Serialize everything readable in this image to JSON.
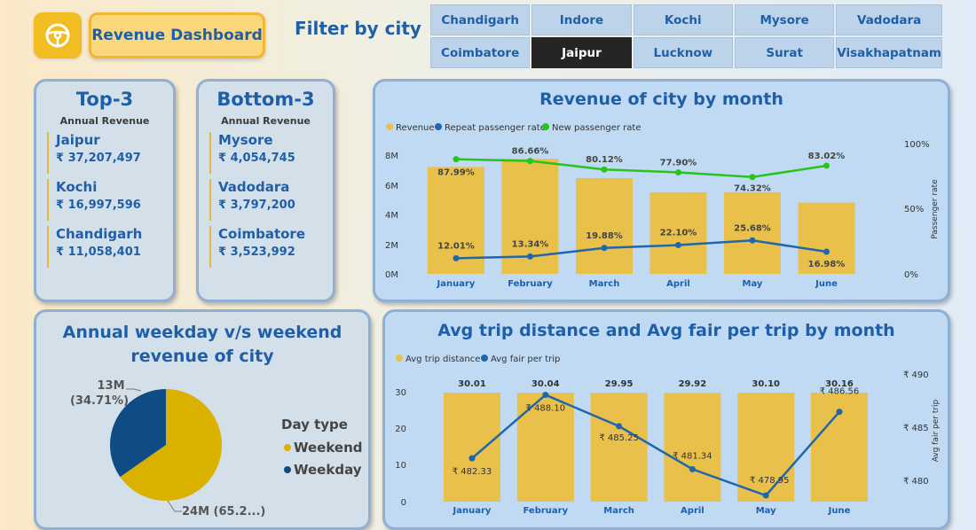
{
  "header": {
    "logo_icon": "steering-wheel-icon",
    "title_button": "Revenue Dashboard",
    "filter_label": "Filter by city"
  },
  "cities": [
    {
      "label": "Chandigarh",
      "selected": false
    },
    {
      "label": "Indore",
      "selected": false
    },
    {
      "label": "Kochi",
      "selected": false
    },
    {
      "label": "Mysore",
      "selected": false
    },
    {
      "label": "Vadodara",
      "selected": false
    },
    {
      "label": "Coimbatore",
      "selected": false
    },
    {
      "label": "Jaipur",
      "selected": true
    },
    {
      "label": "Lucknow",
      "selected": false
    },
    {
      "label": "Surat",
      "selected": false
    },
    {
      "label": "Visakhapatnam",
      "selected": false
    }
  ],
  "top3": {
    "title": "Top-3",
    "subtitle": "Annual Revenue",
    "items": [
      {
        "city": "Jaipur",
        "value": "₹ 37,207,497"
      },
      {
        "city": "Kochi",
        "value": "₹ 16,997,596"
      },
      {
        "city": "Chandigarh",
        "value": "₹ 11,058,401"
      }
    ]
  },
  "bottom3": {
    "title": "Bottom-3",
    "subtitle": "Annual Revenue",
    "items": [
      {
        "city": "Mysore",
        "value": "₹ 4,054,745"
      },
      {
        "city": "Vadodara",
        "value": "₹ 3,797,200"
      },
      {
        "city": "Coimbatore",
        "value": "₹ 3,523,992"
      }
    ]
  },
  "colors": {
    "bar": "#e9c04a",
    "line_blue": "#1f66ad",
    "line_green": "#27c41c",
    "pie_weekend": "#dbb100",
    "pie_weekday": "#0f4c86"
  },
  "revenue_chart": {
    "title": "Revenue of city by month",
    "legend": [
      "Revenue",
      "Repeat passenger rate",
      "New passenger rate"
    ],
    "y_ticks": [
      "0M",
      "2M",
      "4M",
      "6M",
      "8M"
    ],
    "y2_ticks": [
      "0%",
      "50%",
      "100%"
    ],
    "y2_label": "Passenger rate"
  },
  "weekday_chart": {
    "title": "Annual weekday v/s weekend revenue of city",
    "legend_title": "Day type",
    "legend": [
      "Weekend",
      "Weekday"
    ]
  },
  "trip_chart": {
    "title": "Avg trip distance and Avg fair per trip by month",
    "legend": [
      "Avg trip distance",
      "Avg fair per trip"
    ],
    "y_ticks": [
      "0",
      "10",
      "20",
      "30"
    ],
    "y2_ticks": [
      "₹ 480",
      "₹ 485",
      "₹ 490"
    ],
    "y2_label": "Avg fair per trip"
  },
  "chart_data": [
    {
      "type": "bar",
      "title": "Revenue of city by month",
      "categories": [
        "January",
        "February",
        "March",
        "April",
        "May",
        "June"
      ],
      "series": [
        {
          "name": "Revenue",
          "type": "bar",
          "values": [
            7.2,
            7.75,
            6.45,
            5.5,
            5.5,
            4.8
          ]
        },
        {
          "name": "Repeat passenger rate",
          "type": "line",
          "values": [
            12.01,
            13.34,
            19.88,
            22.1,
            25.68,
            16.98
          ],
          "labels": [
            "12.01%",
            "13.34%",
            "19.88%",
            "22.10%",
            "25.68%",
            "16.98%"
          ]
        },
        {
          "name": "New passenger rate",
          "type": "line",
          "values": [
            87.99,
            86.66,
            80.12,
            77.9,
            74.32,
            83.02
          ],
          "labels": [
            "87.99%",
            "86.66%",
            "80.12%",
            "77.90%",
            "74.32%",
            "83.02%"
          ]
        }
      ],
      "ylim": [
        0,
        8
      ],
      "y2lim": [
        0,
        100
      ]
    },
    {
      "type": "pie",
      "title": "Annual weekday v/s weekend revenue of city",
      "categories": [
        "Weekend",
        "Weekday"
      ],
      "values": [
        65.29,
        34.71
      ],
      "labels": [
        "24M (65.2...)",
        "13M (34.71%)"
      ]
    },
    {
      "type": "bar",
      "title": "Avg trip distance and Avg fair per trip by month",
      "categories": [
        "January",
        "February",
        "March",
        "April",
        "May",
        "June"
      ],
      "series": [
        {
          "name": "Avg trip distance",
          "type": "bar",
          "values": [
            30.01,
            30.04,
            29.95,
            29.92,
            30.1,
            30.16
          ],
          "labels": [
            "30.01",
            "30.04",
            "29.95",
            "29.92",
            "30.10",
            "30.16"
          ]
        },
        {
          "name": "Avg fair per trip",
          "type": "line",
          "values": [
            482.33,
            488.1,
            485.25,
            481.34,
            478.95,
            486.56
          ],
          "labels": [
            "₹ 482.33",
            "₹ 488.10",
            "₹ 485.25",
            "₹ 481.34",
            "₹ 478.95",
            "₹ 486.56"
          ]
        }
      ],
      "ylim": [
        0,
        30
      ],
      "y2lim": [
        478.5,
        490
      ]
    }
  ]
}
